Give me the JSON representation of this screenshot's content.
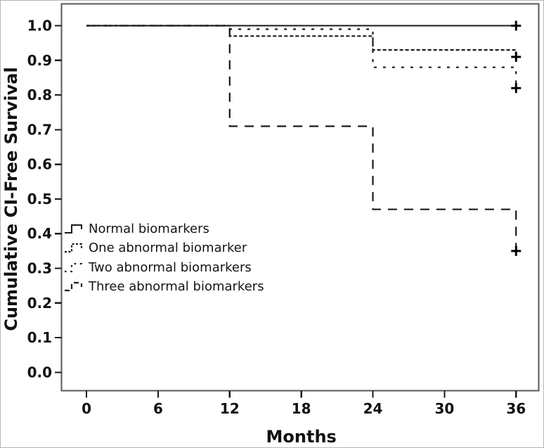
{
  "figure": {
    "kind": "Kaplan-Meier cumulative survival plot",
    "censor_symbol": "+"
  },
  "chart_data": {
    "type": "line",
    "subtype": "kaplan-meier-step",
    "title": "",
    "xlabel": "Months",
    "ylabel": "Cumulative CI-Free Survival",
    "x_ticks": [
      "0",
      "6",
      "12",
      "18",
      "24",
      "30",
      "36"
    ],
    "y_ticks": [
      "0.0",
      "0.1",
      "0.2",
      "0.3",
      "0.4",
      "0.5",
      "0.6",
      "0.7",
      "0.8",
      "0.9",
      "1.0"
    ],
    "xlim": [
      -2.1,
      37.9
    ],
    "ylim": [
      -0.053,
      1.063
    ],
    "grid": false,
    "legend_position": "inside-left-middle",
    "series": [
      {
        "name": "Normal biomarkers",
        "line_style": "solid",
        "steps": [
          [
            0,
            1.0
          ],
          [
            36,
            1.0
          ]
        ],
        "censored": [
          [
            36,
            1.0
          ]
        ]
      },
      {
        "name": "One abnormal biomarker",
        "line_style": "fine-dash",
        "steps": [
          [
            0,
            1.0
          ],
          [
            12,
            1.0
          ],
          [
            12,
            0.97
          ],
          [
            24,
            0.97
          ],
          [
            24,
            0.93
          ],
          [
            36,
            0.93
          ],
          [
            36,
            0.91
          ]
        ],
        "censored": [
          [
            36,
            0.91
          ]
        ]
      },
      {
        "name": "Two abnormal biomarkers",
        "line_style": "sparse-dash",
        "steps": [
          [
            0,
            1.0
          ],
          [
            12,
            1.0
          ],
          [
            12,
            0.99
          ],
          [
            24,
            0.99
          ],
          [
            24,
            0.88
          ],
          [
            36,
            0.88
          ],
          [
            36,
            0.82
          ]
        ],
        "censored": [
          [
            36,
            0.82
          ]
        ]
      },
      {
        "name": "Three abnormal biomarkers",
        "line_style": "long-dash",
        "steps": [
          [
            0,
            1.0
          ],
          [
            12,
            1.0
          ],
          [
            12,
            0.71
          ],
          [
            24,
            0.71
          ],
          [
            24,
            0.47
          ],
          [
            36,
            0.47
          ],
          [
            36,
            0.35
          ]
        ],
        "censored": [
          [
            36,
            0.35
          ]
        ]
      }
    ]
  }
}
